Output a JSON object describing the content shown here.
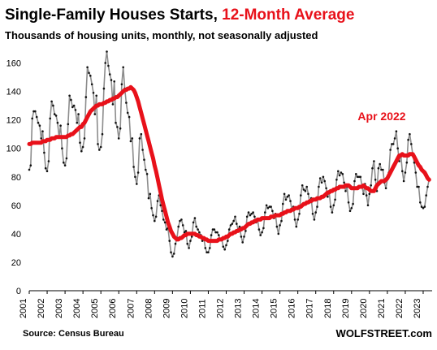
{
  "chart_data": {
    "type": "line",
    "title": "Single-Family Houses Starts, ",
    "title_highlight": "12-Month Average",
    "subtitle": "Thousands of housing units, monthly, not seasonally adjusted",
    "source": "Source: Census Bureau",
    "brand": "WOLFSTREET.com",
    "annotation": "Apr 2022",
    "ylim": [
      0,
      170
    ],
    "yticks": [
      0,
      20,
      40,
      60,
      80,
      100,
      120,
      140,
      160
    ],
    "xlim": [
      2001,
      2023.5
    ],
    "xticks": [
      "2001",
      "2002",
      "2003",
      "2004",
      "2005",
      "2006",
      "2007",
      "2008",
      "2009",
      "2010",
      "2011",
      "2012",
      "2013",
      "2014",
      "2015",
      "2016",
      "2017",
      "2018",
      "2019",
      "2020",
      "2021",
      "2022",
      "2023"
    ],
    "grid": false,
    "legend": "none",
    "colors": {
      "monthly": "#8c8c8c",
      "markers": "#111111",
      "average": "#e8111a"
    },
    "series": [
      {
        "kind": "monthly",
        "start": "2001-01",
        "values": [
          85,
          88,
          121,
          126,
          126,
          122,
          118,
          116,
          107,
          112,
          97,
          86,
          84,
          91,
          121,
          133,
          130,
          124,
          123,
          118,
          108,
          116,
          100,
          90,
          88,
          93,
          117,
          137,
          134,
          129,
          130,
          127,
          118,
          124,
          104,
          98,
          101,
          107,
          136,
          157,
          153,
          151,
          145,
          139,
          124,
          137,
          103,
          99,
          101,
          110,
          142,
          160,
          168,
          158,
          152,
          148,
          131,
          147,
          118,
          115,
          107,
          114,
          145,
          157,
          142,
          132,
          125,
          122,
          105,
          107,
          87,
          80,
          75,
          83,
          107,
          110,
          99,
          92,
          85,
          82,
          65,
          68,
          58,
          53,
          49,
          52,
          63,
          67,
          60,
          56,
          50,
          48,
          43,
          44,
          35,
          27,
          24,
          26,
          33,
          37,
          45,
          49,
          50,
          46,
          41,
          42,
          33,
          30,
          35,
          38,
          48,
          51,
          45,
          43,
          41,
          39,
          35,
          37,
          30,
          27,
          27,
          30,
          39,
          43,
          43,
          41,
          41,
          39,
          36,
          36,
          31,
          29,
          32,
          35,
          43,
          46,
          47,
          49,
          52,
          47,
          43,
          45,
          38,
          34,
          38,
          42,
          52,
          55,
          53,
          54,
          55,
          52,
          48,
          50,
          43,
          39,
          41,
          44,
          55,
          60,
          58,
          59,
          59,
          56,
          51,
          54,
          45,
          40,
          46,
          49,
          61,
          68,
          64,
          66,
          67,
          63,
          57,
          59,
          50,
          45,
          50,
          54,
          67,
          74,
          71,
          70,
          73,
          68,
          62,
          65,
          54,
          50,
          55,
          59,
          73,
          79,
          76,
          80,
          77,
          72,
          66,
          70,
          59,
          55,
          60,
          64,
          78,
          84,
          81,
          83,
          82,
          76,
          70,
          73,
          62,
          56,
          58,
          61,
          77,
          82,
          80,
          80,
          80,
          73,
          68,
          75,
          67,
          60,
          68,
          74,
          86,
          91,
          78,
          70,
          86,
          89,
          85,
          85,
          76,
          72,
          78,
          83,
          99,
          103,
          103,
          107,
          112,
          100,
          91,
          96,
          84,
          77,
          83,
          90,
          106,
          110,
          103,
          96,
          90,
          83,
          73,
          73,
          62,
          59,
          58,
          59,
          67,
          73,
          78
        ]
      },
      {
        "kind": "average",
        "start": "2001-01",
        "values": [
          103,
          103,
          104,
          104,
          104,
          104,
          104,
          104,
          104,
          105,
          105,
          105,
          106,
          106,
          106,
          107,
          107,
          107,
          108,
          108,
          108,
          108,
          108,
          108,
          108,
          108,
          109,
          109,
          110,
          110,
          111,
          112,
          113,
          114,
          115,
          115,
          117,
          118,
          120,
          122,
          124,
          126,
          127,
          128,
          129,
          130,
          130,
          131,
          131,
          131,
          132,
          132,
          133,
          133,
          134,
          134,
          135,
          135,
          136,
          136,
          137,
          138,
          139,
          140,
          141,
          141,
          142,
          142,
          143,
          142,
          141,
          139,
          136,
          133,
          129,
          125,
          121,
          117,
          113,
          109,
          105,
          101,
          97,
          93,
          88,
          84,
          79,
          74,
          69,
          64,
          60,
          56,
          52,
          48,
          45,
          42,
          40,
          38,
          37,
          36,
          36,
          37,
          37,
          38,
          39,
          39,
          40,
          40,
          40,
          40,
          40,
          40,
          39,
          39,
          38,
          38,
          37,
          37,
          36,
          36,
          35,
          35,
          35,
          35,
          35,
          35,
          35,
          36,
          36,
          36,
          37,
          37,
          38,
          38,
          39,
          40,
          40,
          41,
          41,
          42,
          42,
          43,
          43,
          44,
          44,
          45,
          46,
          47,
          47,
          48,
          48,
          49,
          49,
          50,
          50,
          50,
          51,
          51,
          51,
          51,
          51,
          51,
          52,
          52,
          52,
          53,
          53,
          53,
          53,
          54,
          54,
          55,
          55,
          56,
          56,
          56,
          57,
          57,
          58,
          58,
          58,
          59,
          59,
          60,
          61,
          61,
          62,
          62,
          63,
          63,
          64,
          64,
          64,
          65,
          65,
          65,
          66,
          66,
          67,
          68,
          69,
          69,
          70,
          70,
          71,
          71,
          72,
          72,
          73,
          73,
          73,
          73,
          74,
          74,
          74,
          73,
          72,
          72,
          72,
          72,
          72,
          73,
          73,
          73,
          74,
          73,
          72,
          72,
          71,
          70,
          70,
          70,
          72,
          74,
          75,
          76,
          77,
          77,
          77,
          78,
          79,
          81,
          83,
          85,
          87,
          89,
          91,
          93,
          95,
          95,
          96,
          95,
          95,
          95,
          95,
          96,
          96,
          96,
          94,
          92,
          90,
          88,
          87,
          85,
          84,
          83,
          81,
          79,
          78
        ]
      }
    ]
  }
}
